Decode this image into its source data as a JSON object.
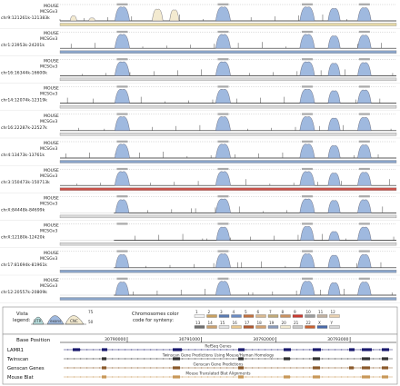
{
  "panels": [
    {
      "species1": "MOUSE",
      "species2": "MCSGv3",
      "region": "chr9:121261k-121383k",
      "bar": "#e4d7a6"
    },
    {
      "species1": "MOUSE",
      "species2": "MCSGv3",
      "region": "chr1:23953k-24201k",
      "bar": "#8aa4c8"
    },
    {
      "species1": "MOUSE",
      "species2": "MCSGv3",
      "region": "chr16:16344k-16600k",
      "bar": "#d9d9d9"
    },
    {
      "species1": "MOUSE",
      "species2": "MCSGv3",
      "region": "chr14:12074k-12319k",
      "bar": "#d9d9d9"
    },
    {
      "species1": "MOUSE",
      "species2": "MCSGv3",
      "region": "chr16:22287k-22527k",
      "bar": "#d9d9d9"
    },
    {
      "species1": "MOUSE",
      "species2": "MCSGv3",
      "region": "chr4:13473k-13761k",
      "bar": "#8aa4c8"
    },
    {
      "species1": "MOUSE",
      "species2": "MCSGv3",
      "region": "chr3:150473k-150713k",
      "bar": "#c8524a"
    },
    {
      "species1": "MOUSE",
      "species2": "MCSGv3",
      "region": "chrX:84448k-84699k",
      "bar": "#d9d9d9"
    },
    {
      "species1": "MOUSE",
      "species2": "MCSGv3",
      "region": "chrX:12180k-12420k",
      "bar": "#d9d9d9"
    },
    {
      "species1": "MOUSE",
      "species2": "MCSGv3",
      "region": "chr17:81694k-81961k",
      "bar": "#8aa4c8"
    },
    {
      "species1": "MOUSE",
      "species2": "MCSGv3",
      "region": "chr12:20557k-20809k",
      "bar": "#8aa4c8"
    }
  ],
  "legend": {
    "vista_label_1": "Vista",
    "vista_label_2": "legend:",
    "utr_label": "UTR",
    "exons_label": "exons",
    "cnc_label": "CNC",
    "pct_top": "75",
    "pct_bottom": "50",
    "synteny_label_1": "Chromosomes color",
    "synteny_label_2": "code for synteny:",
    "chromosomes_row1": [
      "1",
      "2",
      "3",
      "4",
      "5",
      "6",
      "7",
      "8",
      "9",
      "10",
      "11",
      "12"
    ],
    "chromosomes_row2": [
      "13",
      "14",
      "15",
      "16",
      "17",
      "18",
      "19",
      "20",
      "21",
      "22",
      "X",
      "Y"
    ],
    "row1_colors": [
      "#f2f2f2",
      "#c8a060",
      "#5a7ab0",
      "#6a8ac0",
      "#c07040",
      "#d8b890",
      "#c0a878",
      "#c89060",
      "#c83a30",
      "#9c9c9c",
      "#c0b0a0",
      "#e8d0b0"
    ],
    "row2_colors": [
      "#707070",
      "#c8a070",
      "#e0e0e0",
      "#e8c890",
      "#b05830",
      "#d0a070",
      "#8a9ab8",
      "#f0e8d0",
      "#c8c8c8",
      "#c86030",
      "#4a6aa8",
      "#d8d8d8"
    ]
  },
  "browser": {
    "base_position_label": "Base Position",
    "positions": [
      "30790000",
      "30791000",
      "30792000",
      "30793000"
    ],
    "tracks": [
      {
        "name": "LAMR1",
        "title": "RefSeq Genes",
        "color": "#1a1a6e"
      },
      {
        "name": "Twinscan",
        "title": "Twinscan Gene Predictions Using Mouse/Human Homology",
        "color": "#333333"
      },
      {
        "name": "Genscan Genes",
        "title": "Genscan Gene Predictions",
        "color": "#8b5a2b"
      },
      {
        "name": "Mouse Blat",
        "title": "Mouse Translated Blat Alignments",
        "color": "#c89858"
      }
    ]
  }
}
